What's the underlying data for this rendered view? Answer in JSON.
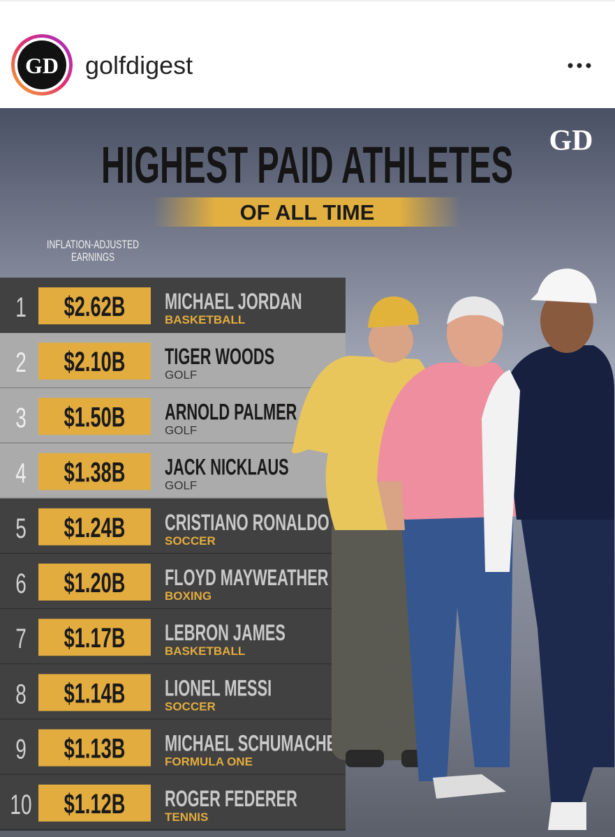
{
  "header": {
    "username": "golfdigest",
    "avatar_text": "GD"
  },
  "graphic": {
    "brand": "GD",
    "title": "HIGHEST PAID ATHLETES",
    "subtitle": "OF ALL TIME",
    "column_label": [
      "INFLATION-ADJUSTED",
      "EARNINGS"
    ],
    "rows": [
      {
        "rank": 1,
        "earnings": "$2.62B",
        "name": "MICHAEL JORDAN",
        "sport": "BASKETBALL"
      },
      {
        "rank": 2,
        "earnings": "$2.10B",
        "name": "TIGER WOODS",
        "sport": "GOLF"
      },
      {
        "rank": 3,
        "earnings": "$1.50B",
        "name": "ARNOLD PALMER",
        "sport": "GOLF"
      },
      {
        "rank": 4,
        "earnings": "$1.38B",
        "name": "JACK NICKLAUS",
        "sport": "GOLF"
      },
      {
        "rank": 5,
        "earnings": "$1.24B",
        "name": "CRISTIANO RONALDO",
        "sport": "SOCCER"
      },
      {
        "rank": 6,
        "earnings": "$1.20B",
        "name": "FLOYD MAYWEATHER",
        "sport": "BOXING"
      },
      {
        "rank": 7,
        "earnings": "$1.17B",
        "name": "LEBRON JAMES",
        "sport": "BASKETBALL"
      },
      {
        "rank": 8,
        "earnings": "$1.14B",
        "name": "LIONEL MESSI",
        "sport": "SOCCER"
      },
      {
        "rank": 9,
        "earnings": "$1.13B",
        "name": "MICHAEL SCHUMACHER",
        "sport": "FORMULA ONE"
      },
      {
        "rank": 10,
        "earnings": "$1.12B",
        "name": "ROGER FEDERER",
        "sport": "TENNIS"
      }
    ]
  }
}
